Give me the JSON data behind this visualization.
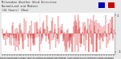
{
  "title": "Milwaukee Weather Wind Direction  Normalized and Median  (24 Hours) (New)",
  "n_bars": 240,
  "bar_color": "#cc0000",
  "background_color": "#e8e8e8",
  "plot_bg_color": "#ffffff",
  "grid_color": "#aaaaaa",
  "ylim": [
    -1.15,
    1.15
  ],
  "yticks": [
    1.0,
    0.0,
    -1.0
  ],
  "yticklabels": [
    "1",
    "",
    "-1"
  ],
  "legend_blue": "#0000bb",
  "legend_red": "#cc0000",
  "seed": 7
}
